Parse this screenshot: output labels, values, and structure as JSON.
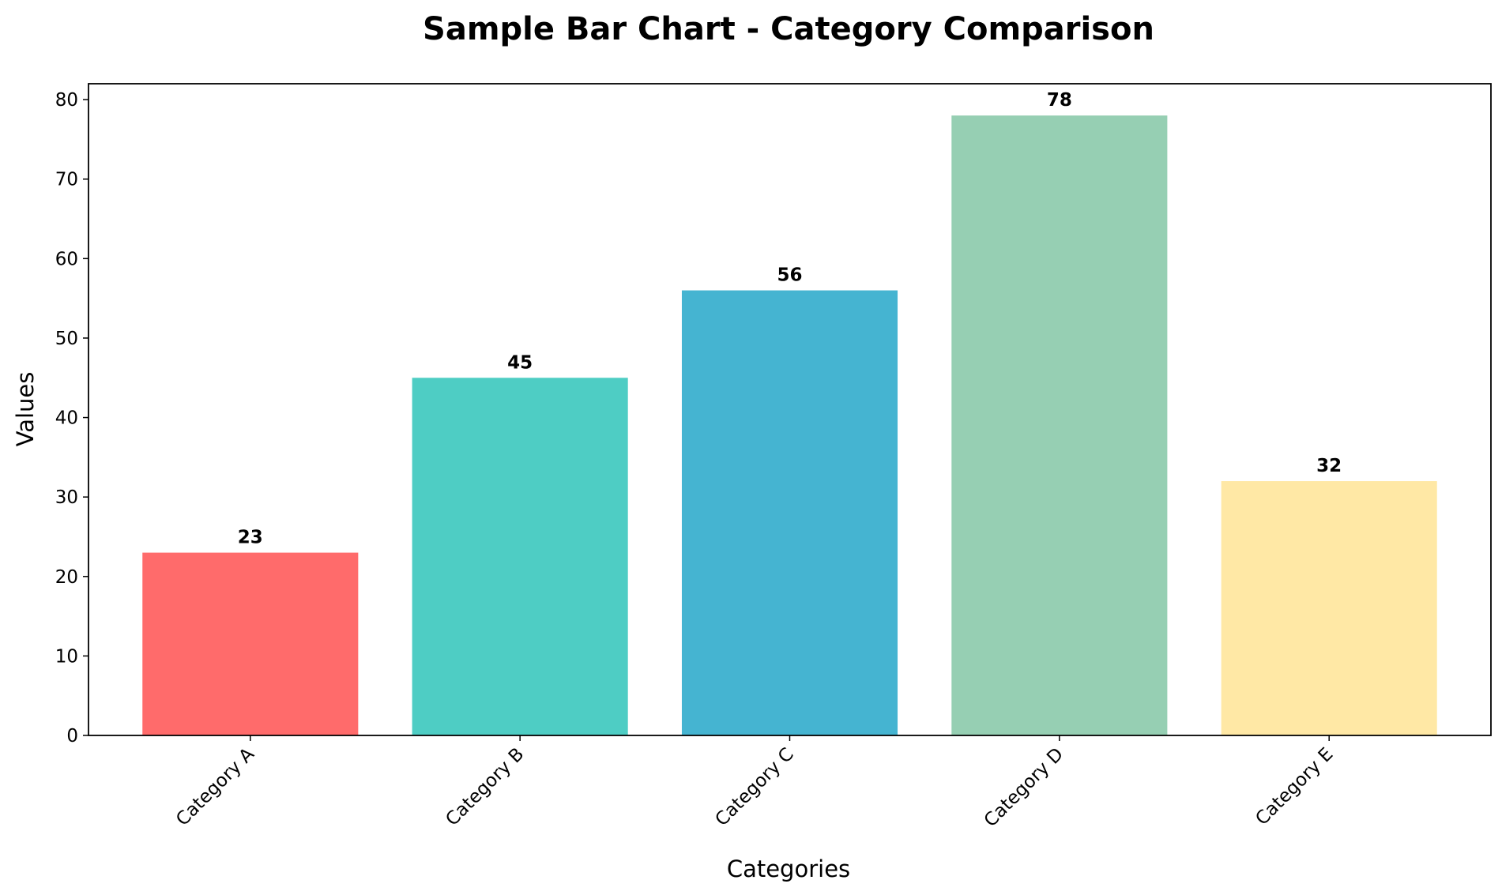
{
  "chart_data": {
    "type": "bar",
    "title": "Sample Bar Chart - Category Comparison",
    "xlabel": "Categories",
    "ylabel": "Values",
    "categories": [
      "Category A",
      "Category B",
      "Category C",
      "Category D",
      "Category E"
    ],
    "values": [
      23,
      45,
      56,
      78,
      32
    ],
    "data_labels": [
      "23",
      "45",
      "56",
      "78",
      "32"
    ],
    "colors": [
      "#ff6b6b",
      "#4ecdc4",
      "#45b4d1",
      "#96cfb3",
      "#ffe8a5"
    ],
    "ylim": [
      0,
      82
    ],
    "yticks": [
      0,
      10,
      20,
      30,
      40,
      50,
      60,
      70,
      80
    ],
    "ytick_labels": [
      "0",
      "10",
      "20",
      "30",
      "40",
      "50",
      "60",
      "70",
      "80"
    ],
    "xtick_rotation_deg": 45,
    "grid": false,
    "legend": "none"
  }
}
